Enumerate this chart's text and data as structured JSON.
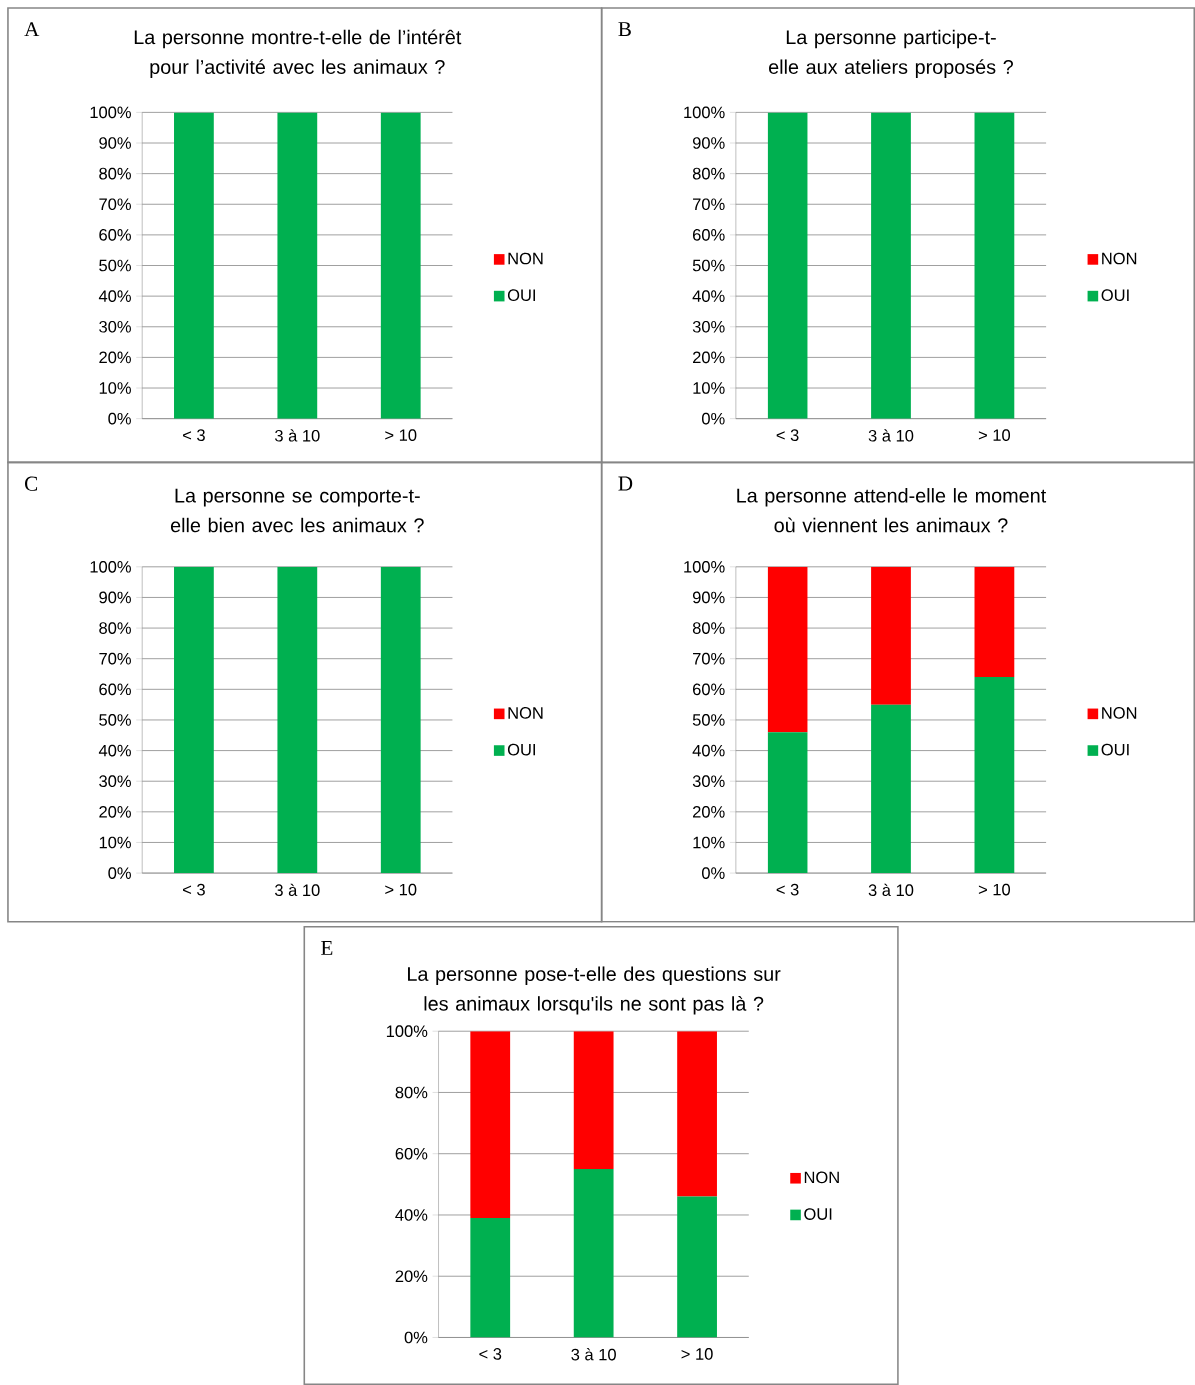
{
  "chart_data": [
    {
      "type": "bar",
      "stacked": true,
      "title": "La personne montre-t-elle de l’intérêt pour l’activité avec les animaux ?",
      "annotations": [
        "A"
      ],
      "categories": [
        "< 3",
        "3 à 10",
        "> 10"
      ],
      "series": [
        {
          "name": "OUI",
          "color": "#00b050",
          "values": [
            100,
            100,
            100
          ]
        },
        {
          "name": "NON",
          "color": "#ff0000",
          "values": [
            0,
            0,
            0
          ]
        }
      ],
      "ylim": [
        0,
        100
      ],
      "yticks": [
        {
          "value": 0,
          "label": "0%"
        },
        {
          "value": 10,
          "label": "10%"
        },
        {
          "value": 20,
          "label": "20%"
        },
        {
          "value": 30,
          "label": "30%"
        },
        {
          "value": 40,
          "label": "40%"
        },
        {
          "value": 50,
          "label": "50%"
        },
        {
          "value": 60,
          "label": "60%"
        },
        {
          "value": 70,
          "label": "70%"
        },
        {
          "value": 80,
          "label": "80%"
        },
        {
          "value": 90,
          "label": "90%"
        },
        {
          "value": 100,
          "label": "100%"
        }
      ],
      "grid": "y",
      "legend": "right"
    },
    {
      "type": "bar",
      "stacked": true,
      "title": "La personne participe-t-elle aux ateliers proposés ?",
      "annotations": [
        "B"
      ],
      "categories": [
        "< 3",
        "3 à 10",
        "> 10"
      ],
      "series": [
        {
          "name": "OUI",
          "color": "#00b050",
          "values": [
            100,
            100,
            100
          ]
        },
        {
          "name": "NON",
          "color": "#ff0000",
          "values": [
            0,
            0,
            0
          ]
        }
      ],
      "ylim": [
        0,
        100
      ],
      "yticks": [
        {
          "value": 0,
          "label": "0%"
        },
        {
          "value": 10,
          "label": "10%"
        },
        {
          "value": 20,
          "label": "20%"
        },
        {
          "value": 30,
          "label": "30%"
        },
        {
          "value": 40,
          "label": "40%"
        },
        {
          "value": 50,
          "label": "50%"
        },
        {
          "value": 60,
          "label": "60%"
        },
        {
          "value": 70,
          "label": "70%"
        },
        {
          "value": 80,
          "label": "80%"
        },
        {
          "value": 90,
          "label": "90%"
        },
        {
          "value": 100,
          "label": "100%"
        }
      ],
      "grid": "y",
      "legend": "right"
    },
    {
      "type": "bar",
      "stacked": true,
      "title": "La personne se comporte-t-elle bien avec les animaux ?",
      "annotations": [
        "C"
      ],
      "categories": [
        "< 3",
        "3 à 10",
        "> 10"
      ],
      "series": [
        {
          "name": "OUI",
          "color": "#00b050",
          "values": [
            100,
            100,
            100
          ]
        },
        {
          "name": "NON",
          "color": "#ff0000",
          "values": [
            0,
            0,
            0
          ]
        }
      ],
      "ylim": [
        0,
        100
      ],
      "yticks": [
        {
          "value": 0,
          "label": "0%"
        },
        {
          "value": 10,
          "label": "10%"
        },
        {
          "value": 20,
          "label": "20%"
        },
        {
          "value": 30,
          "label": "30%"
        },
        {
          "value": 40,
          "label": "40%"
        },
        {
          "value": 50,
          "label": "50%"
        },
        {
          "value": 60,
          "label": "60%"
        },
        {
          "value": 70,
          "label": "70%"
        },
        {
          "value": 80,
          "label": "80%"
        },
        {
          "value": 90,
          "label": "90%"
        },
        {
          "value": 100,
          "label": "100%"
        }
      ],
      "grid": "y",
      "legend": "right"
    },
    {
      "type": "bar",
      "stacked": true,
      "title": "La personne attend-elle le moment où viennent les animaux ?",
      "annotations": [
        "D"
      ],
      "categories": [
        "< 3",
        "3 à 10",
        "> 10"
      ],
      "series": [
        {
          "name": "OUI",
          "color": "#00b050",
          "values": [
            46,
            55,
            64
          ]
        },
        {
          "name": "NON",
          "color": "#ff0000",
          "values": [
            54,
            45,
            36
          ]
        }
      ],
      "ylim": [
        0,
        100
      ],
      "yticks": [
        {
          "value": 0,
          "label": "0%"
        },
        {
          "value": 10,
          "label": "10%"
        },
        {
          "value": 20,
          "label": "20%"
        },
        {
          "value": 30,
          "label": "30%"
        },
        {
          "value": 40,
          "label": "40%"
        },
        {
          "value": 50,
          "label": "50%"
        },
        {
          "value": 60,
          "label": "60%"
        },
        {
          "value": 70,
          "label": "70%"
        },
        {
          "value": 80,
          "label": "80%"
        },
        {
          "value": 90,
          "label": "90%"
        },
        {
          "value": 100,
          "label": "100%"
        }
      ],
      "grid": "y",
      "legend": "right"
    },
    {
      "type": "bar",
      "stacked": true,
      "title": "La personne pose-t-elle des questions sur les animaux lorsqu'ils ne sont pas là ?",
      "annotations": [
        "E"
      ],
      "categories": [
        "< 3",
        "3 à 10",
        "> 10"
      ],
      "series": [
        {
          "name": "OUI",
          "color": "#00b050",
          "values": [
            39,
            55,
            46
          ]
        },
        {
          "name": "NON",
          "color": "#ff0000",
          "values": [
            61,
            45,
            54
          ]
        }
      ],
      "ylim": [
        0,
        100
      ],
      "yticks": [
        {
          "value": 0,
          "label": "0%"
        },
        {
          "value": 20,
          "label": "20%"
        },
        {
          "value": 40,
          "label": "40%"
        },
        {
          "value": 60,
          "label": "60%"
        },
        {
          "value": 80,
          "label": "80%"
        },
        {
          "value": 100,
          "label": "100%"
        }
      ],
      "grid": "y",
      "legend": "right"
    }
  ]
}
